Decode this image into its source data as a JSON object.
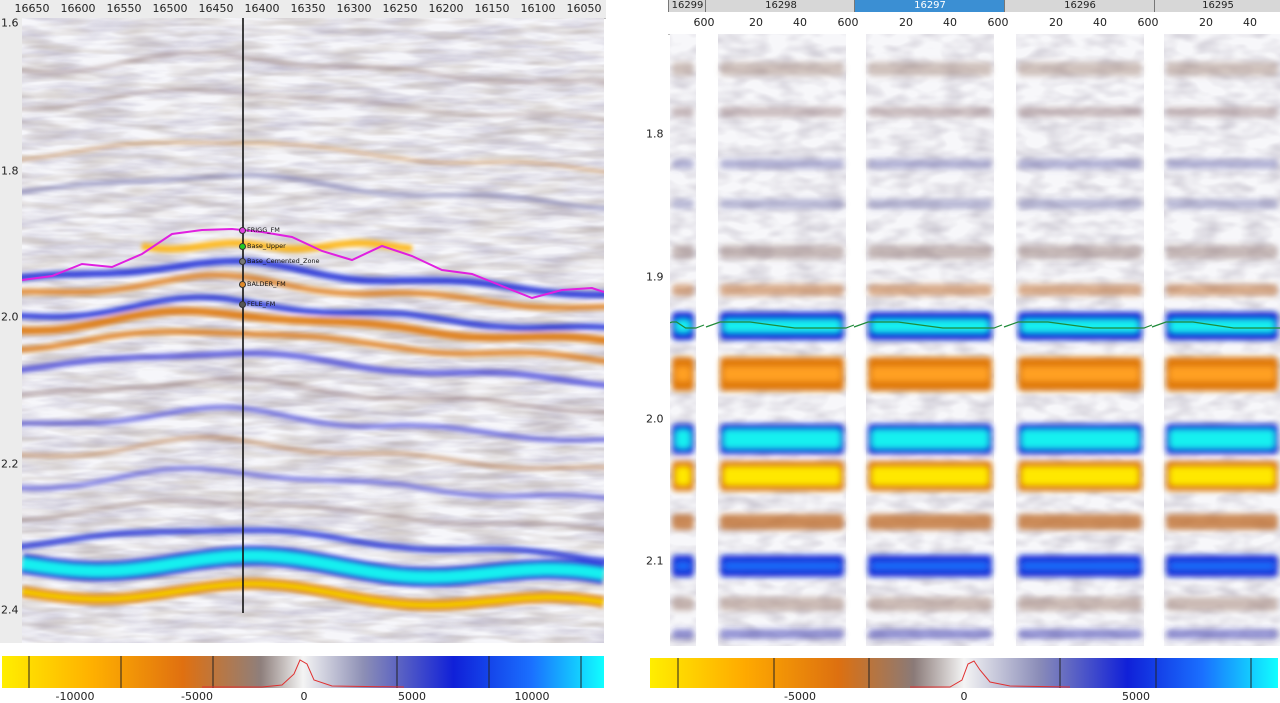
{
  "left_section": {
    "x_axis_ticks": [
      "16650",
      "16600",
      "16550",
      "16500",
      "16450",
      "16400",
      "16350",
      "16300",
      "16250",
      "16200",
      "16150",
      "16100",
      "16050"
    ],
    "y_axis_ticks": [
      "1.6",
      "1.8",
      "2.0",
      "2.2",
      "2.4"
    ],
    "well_markers": [
      {
        "label": "FRIGG_FM",
        "color": "#e040e0"
      },
      {
        "label": "Base_Upper",
        "color": "#22cc22"
      },
      {
        "label": "Base_Cemented_Zone",
        "color": "#777777"
      },
      {
        "label": "BALDER_FM",
        "color": "#e08a2a"
      },
      {
        "label": "FELE_FM",
        "color": "#555555"
      }
    ],
    "colorbar_ticks": [
      "-10000",
      "-5000",
      "0",
      "5000",
      "10000"
    ]
  },
  "right_section": {
    "gathers": [
      {
        "label": "16299",
        "selected": false
      },
      {
        "label": "16298",
        "selected": false
      },
      {
        "label": "16297",
        "selected": true
      },
      {
        "label": "16296",
        "selected": false
      },
      {
        "label": "16295",
        "selected": false
      }
    ],
    "trace_ticks": [
      "600",
      "20",
      "40",
      "600",
      "20",
      "40",
      "600",
      "20",
      "40",
      "600",
      "20",
      "40"
    ],
    "y_axis_ticks": [
      "1.8",
      "1.9",
      "2.0",
      "2.1"
    ],
    "colorbar_ticks": [
      "-5000",
      "0",
      "5000"
    ]
  },
  "colors": {
    "horizon_magenta": "#e020e0",
    "horizon_green": "#1f8a3a",
    "positive_blue": "#0a28d8",
    "positive_cyan": "#12f0f0",
    "negative_orange": "#e07a10",
    "negative_yellow": "#ffe800"
  }
}
